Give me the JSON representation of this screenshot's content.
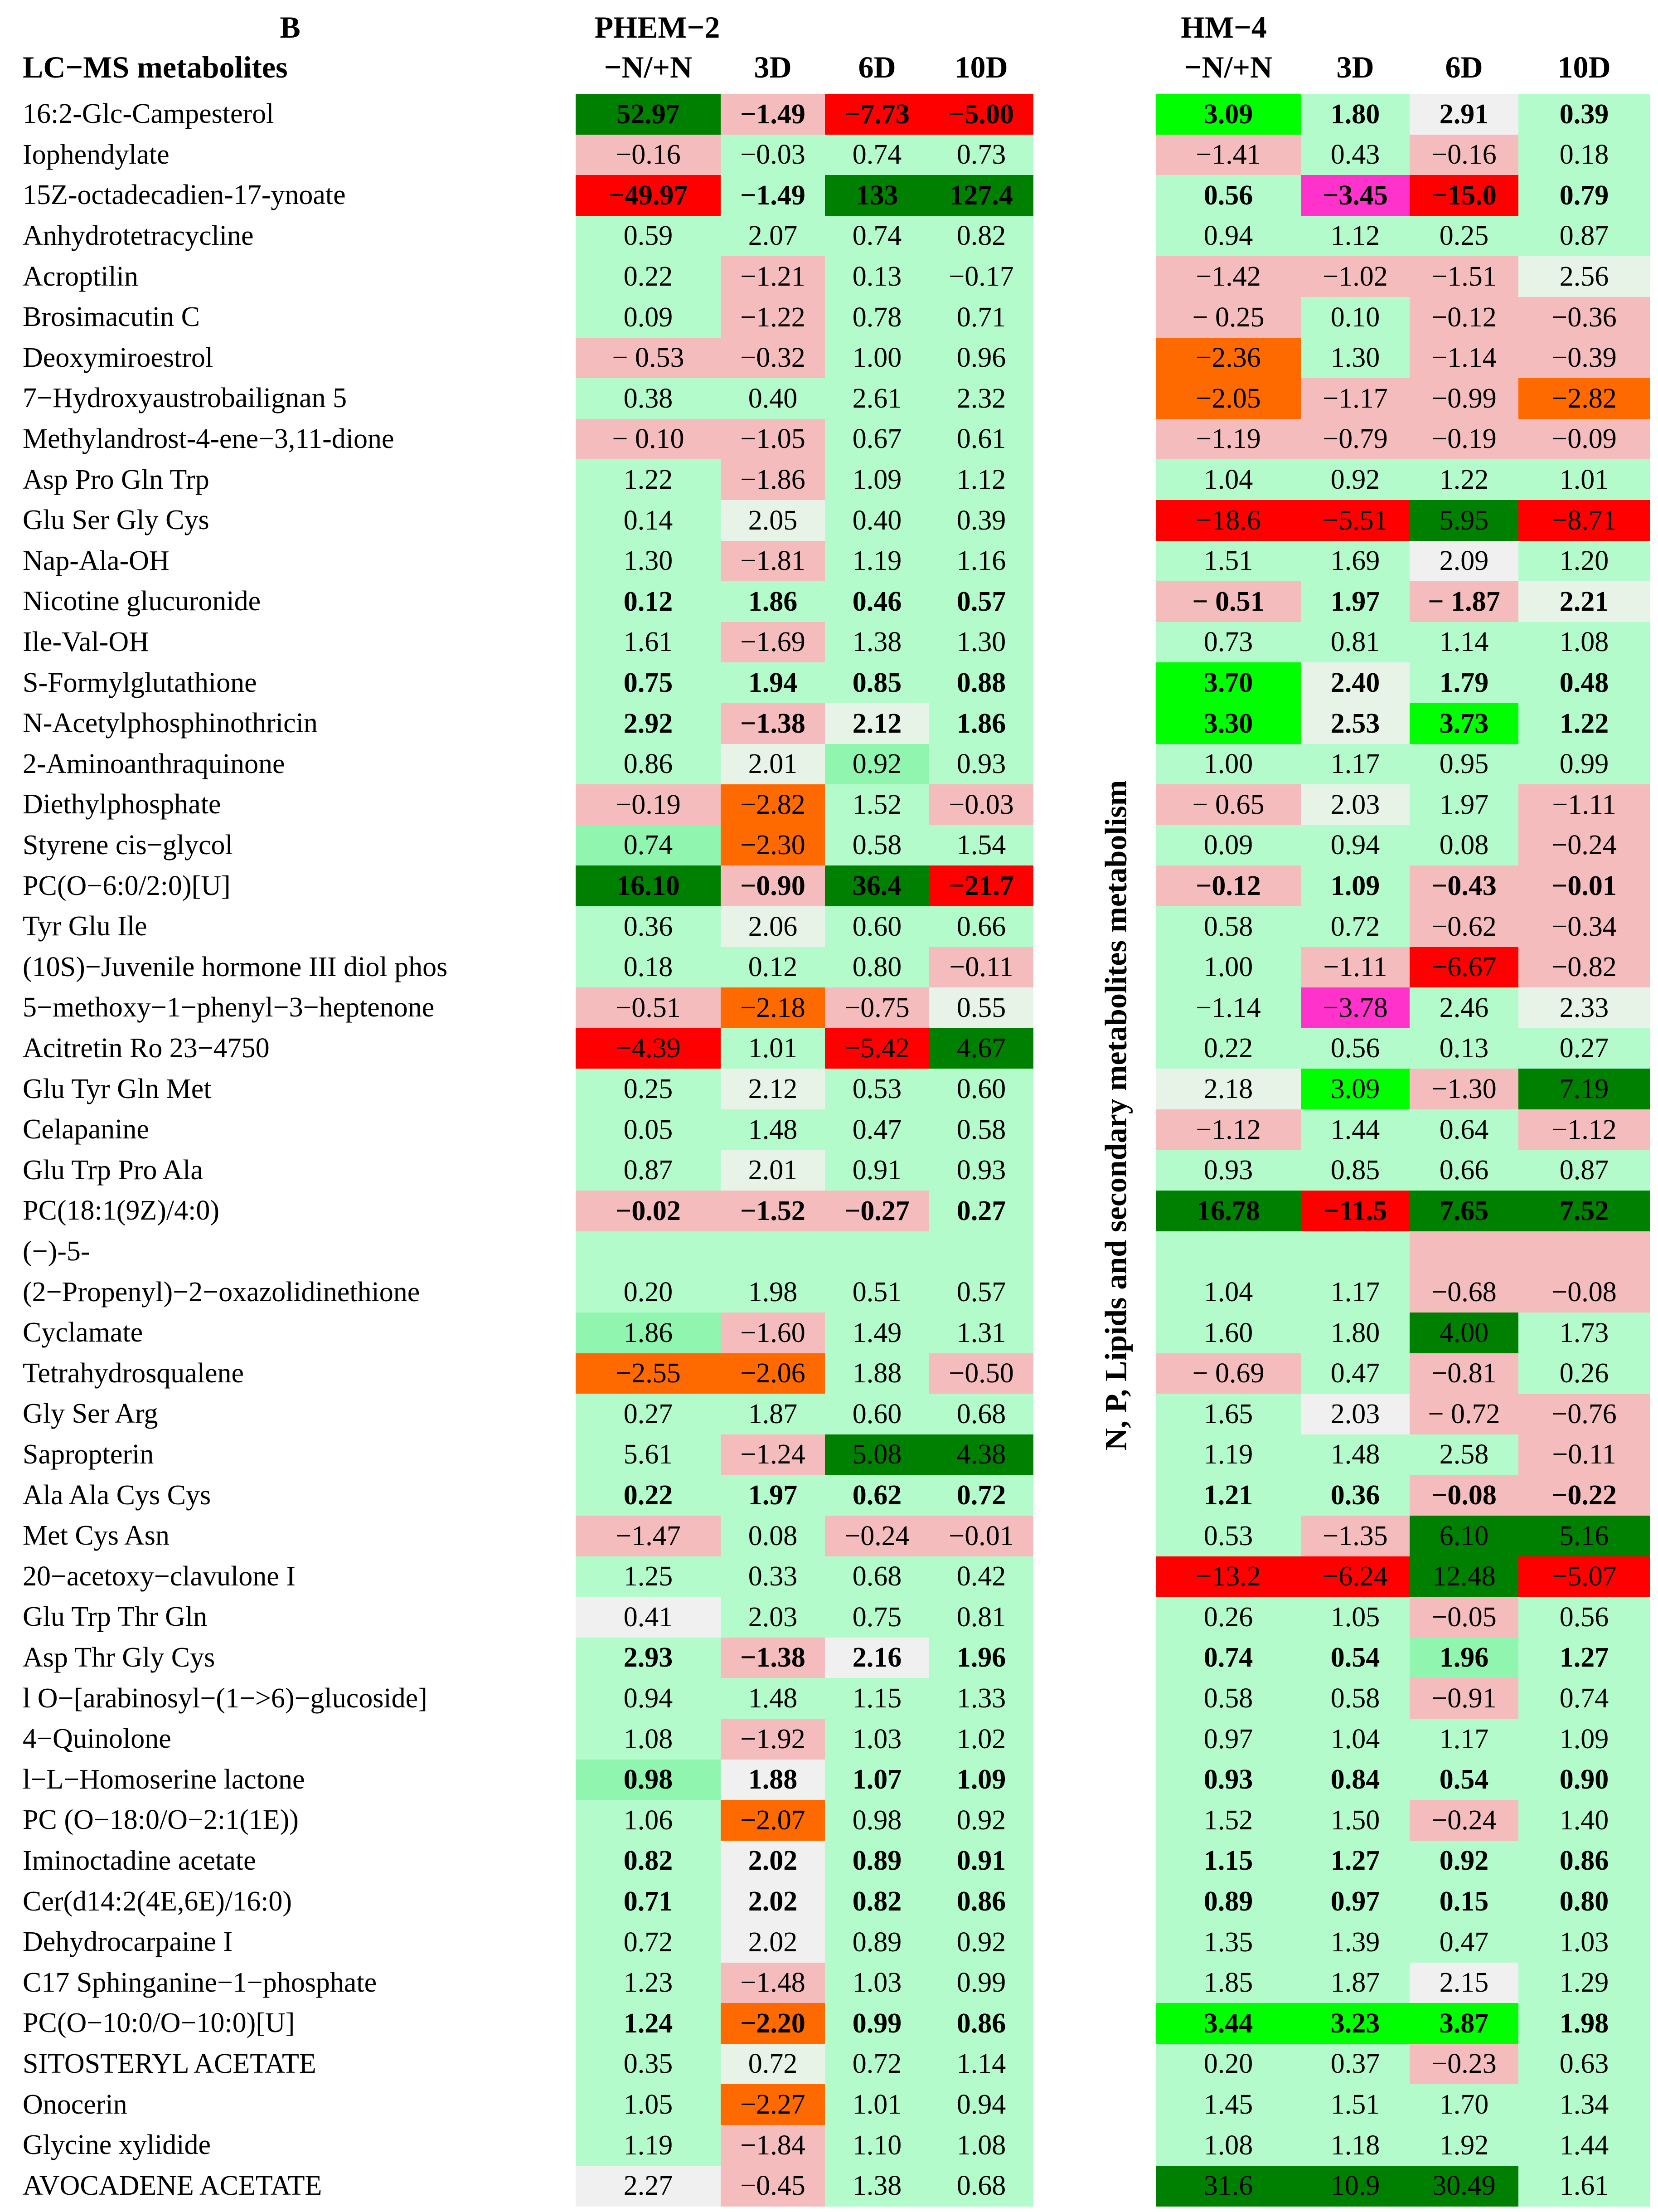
{
  "panel_letter": "B",
  "title": "LC−MS metabolites",
  "group1": {
    "name": "PHEM−2",
    "columns": [
      "−N/+N",
      "3D",
      "6D",
      "10D"
    ]
  },
  "group2": {
    "name": "HM−4",
    "columns": [
      "−N/+N",
      "3D",
      "6D",
      "10D"
    ]
  },
  "side_label": "N, P, Lipids and secondary metabolites metabolism",
  "colors": {
    "W": "#f0f0f0",
    "L": "#b4fbcc",
    "M": "#90f5ae",
    "G": "#00ff00",
    "D": "#008000",
    "P": "#f4bcbc",
    "O": "#ff6a00",
    "R": "#ff0000",
    "K": "#ff33cc",
    "E": "#e6f3e6"
  },
  "chart_data": {
    "type": "heatmap",
    "rows": [
      {
        "name": "16:2-Glc-Campesterol",
        "v": [
          "52.97",
          "−1.49",
          "−7.73",
          "−5.00",
          "3.09",
          "1.80",
          "2.91",
          "0.39"
        ],
        "c": "DPRRGLWL",
        "b": true
      },
      {
        "name": "Iophendylate",
        "v": [
          "−0.16",
          "−0.03",
          "0.74",
          "0.73",
          "−1.41",
          "0.43",
          "−0.16",
          "0.18"
        ],
        "c": "PLLLPLPL",
        "b": false
      },
      {
        "name": "15Z-octadecadien-17-ynoate",
        "v": [
          "−49.97",
          "−1.49",
          "133",
          "127.4",
          "0.56",
          "−3.45",
          "−15.0",
          "0.79"
        ],
        "c": "RLDDLKRL",
        "b": true
      },
      {
        "name": "Anhydrotetracycline",
        "v": [
          "0.59",
          "2.07",
          "0.74",
          "0.82",
          "0.94",
          "1.12",
          "0.25",
          "0.87"
        ],
        "c": "LLLLLLLL",
        "b": false
      },
      {
        "name": "Acroptilin",
        "v": [
          "0.22",
          "−1.21",
          "0.13",
          "−0.17",
          "−1.42",
          "−1.02",
          "−1.51",
          "2.56"
        ],
        "c": "LPLLPPPE",
        "b": false
      },
      {
        "name": "Brosimacutin C",
        "v": [
          "0.09",
          "−1.22",
          "0.78",
          "0.71",
          "− 0.25",
          "0.10",
          "−0.12",
          "−0.36"
        ],
        "c": "LPLLPLPP",
        "b": false
      },
      {
        "name": "Deoxymiroestrol",
        "v": [
          "− 0.53",
          "−0.32",
          "1.00",
          "0.96",
          "−2.36",
          "1.30",
          "−1.14",
          "−0.39"
        ],
        "c": "PPLLOLPP",
        "b": false
      },
      {
        "name": "7−Hydroxyaustrobailignan 5",
        "v": [
          "0.38",
          "0.40",
          "2.61",
          "2.32",
          "−2.05",
          "−1.17",
          "−0.99",
          "−2.82"
        ],
        "c": "LLLLOPPO",
        "b": false
      },
      {
        "name": "Methylandrost-4-ene−3,11-dione",
        "v": [
          "− 0.10",
          "−1.05",
          "0.67",
          "0.61",
          "−1.19",
          "−0.79",
          "−0.19",
          "−0.09"
        ],
        "c": "PPLLPPPP",
        "b": false
      },
      {
        "name": "Asp Pro Gln Trp",
        "v": [
          "1.22",
          "−1.86",
          "1.09",
          "1.12",
          "1.04",
          "0.92",
          "1.22",
          "1.01"
        ],
        "c": "LPLLLLLL",
        "b": false
      },
      {
        "name": "Glu Ser Gly Cys",
        "v": [
          "0.14",
          "2.05",
          "0.40",
          "0.39",
          "−18.6",
          "−5.51",
          "5.95",
          "−8.71"
        ],
        "c": "LELLRRDR",
        "b": false
      },
      {
        "name": "Nap-Ala-OH",
        "v": [
          "1.30",
          "−1.81",
          "1.19",
          "1.16",
          "1.51",
          "1.69",
          "2.09",
          "1.20"
        ],
        "c": "LPLLLLWL",
        "b": false
      },
      {
        "name": "Nicotine glucuronide",
        "v": [
          "0.12",
          "1.86",
          "0.46",
          "0.57",
          "− 0.51",
          "1.97",
          "− 1.87",
          "2.21"
        ],
        "c": "LLLLPLPE",
        "b": true
      },
      {
        "name": "Ile-Val-OH",
        "v": [
          "1.61",
          "−1.69",
          "1.38",
          "1.30",
          "0.73",
          "0.81",
          "1.14",
          "1.08"
        ],
        "c": "LPLLLLLL",
        "b": false
      },
      {
        "name": "S-Formylglutathione",
        "v": [
          "0.75",
          "1.94",
          "0.85",
          "0.88",
          "3.70",
          "2.40",
          "1.79",
          "0.48"
        ],
        "c": "LLLLGELL",
        "b": true
      },
      {
        "name": "N-Acetylphosphinothricin",
        "v": [
          "2.92",
          "−1.38",
          "2.12",
          "1.86",
          "3.30",
          "2.53",
          "3.73",
          "1.22"
        ],
        "c": "LPELGEGL",
        "b": true
      },
      {
        "name": "2-Aminoanthraquinone",
        "v": [
          "0.86",
          "2.01",
          "0.92",
          "0.93",
          "1.00",
          "1.17",
          "0.95",
          "0.99"
        ],
        "c": "LEMLLLLL",
        "b": false
      },
      {
        "name": "Diethylphosphate",
        "v": [
          "−0.19",
          "−2.82",
          "1.52",
          "−0.03",
          "− 0.65",
          "2.03",
          "1.97",
          "−1.11"
        ],
        "c": "POLPPELP",
        "b": false
      },
      {
        "name": "Styrene cis−glycol",
        "v": [
          "0.74",
          "−2.30",
          "0.58",
          "1.54",
          "0.09",
          "0.94",
          "0.08",
          "−0.24"
        ],
        "c": "MOLLLLLP",
        "b": false
      },
      {
        "name": "PC(O−6:0/2:0)[U]",
        "v": [
          "16.10",
          "−0.90",
          "36.4",
          "−21.7",
          "−0.12",
          "1.09",
          "−0.43",
          "−0.01"
        ],
        "c": "DPDRPLPP",
        "b": true
      },
      {
        "name": "Tyr Glu Ile",
        "v": [
          "0.36",
          "2.06",
          "0.60",
          "0.66",
          "0.58",
          "0.72",
          "−0.62",
          "−0.34"
        ],
        "c": "LELLLLPP",
        "b": false
      },
      {
        "name": "(10S)−Juvenile hormone III diol phos",
        "v": [
          "0.18",
          "0.12",
          "0.80",
          "−0.11",
          "1.00",
          "−1.11",
          "−6.67",
          "−0.82"
        ],
        "c": "LLLPLPRP",
        "b": false
      },
      {
        "name": "5−methoxy−1−phenyl−3−heptenone",
        "v": [
          "−0.51",
          "−2.18",
          "−0.75",
          "0.55",
          "−1.14",
          "−3.78",
          "2.46",
          "2.33"
        ],
        "c": "POPELKLE",
        "b": false
      },
      {
        "name": "Acitretin Ro 23−4750",
        "v": [
          "−4.39",
          "1.01",
          "−5.42",
          "4.67",
          "0.22",
          "0.56",
          "0.13",
          "0.27"
        ],
        "c": "RLRDLLLL",
        "b": false
      },
      {
        "name": "Glu Tyr Gln Met",
        "v": [
          "0.25",
          "2.12",
          "0.53",
          "0.60",
          "2.18",
          "3.09",
          "−1.30",
          "7.19"
        ],
        "c": "LELLEGPD",
        "b": false
      },
      {
        "name": "Celapanine",
        "v": [
          "0.05",
          "1.48",
          "0.47",
          "0.58",
          "−1.12",
          "1.44",
          "0.64",
          "−1.12"
        ],
        "c": "LLLLPLLP",
        "b": false
      },
      {
        "name": "Glu Trp Pro Ala",
        "v": [
          "0.87",
          "2.01",
          "0.91",
          "0.93",
          "0.93",
          "0.85",
          "0.66",
          "0.87"
        ],
        "c": "LELLLLLL",
        "b": false
      },
      {
        "name": "PC(18:1(9Z)/4:0)",
        "v": [
          "−0.02",
          "−1.52",
          "−0.27",
          "0.27",
          "16.78",
          "−11.5",
          "7.65",
          "7.52"
        ],
        "c": "PPPLDRDD",
        "b": true
      },
      {
        "name": "(−)-5-",
        "v": [
          "",
          "",
          "",
          "",
          "",
          "",
          "",
          ""
        ],
        "c": "LLLLLLPP",
        "b": false
      },
      {
        "name": "(2−Propenyl)−2−oxazolidinethione",
        "v": [
          "0.20",
          "1.98",
          "0.51",
          "0.57",
          "1.04",
          "1.17",
          "−0.68",
          "−0.08"
        ],
        "c": "LLLLLLPP",
        "b": false
      },
      {
        "name": "Cyclamate",
        "v": [
          "1.86",
          "−1.60",
          "1.49",
          "1.31",
          "1.60",
          "1.80",
          "4.00",
          "1.73"
        ],
        "c": "MPLLLLDL",
        "b": false
      },
      {
        "name": "Tetrahydrosqualene",
        "v": [
          "−2.55",
          "−2.06",
          "1.88",
          "−0.50",
          "− 0.69",
          "0.47",
          "−0.81",
          "0.26"
        ],
        "c": "OOLPPLPL",
        "b": false
      },
      {
        "name": "Gly Ser Arg",
        "v": [
          "0.27",
          "1.87",
          "0.60",
          "0.68",
          "1.65",
          "2.03",
          "− 0.72",
          "−0.76"
        ],
        "c": "LLLLLWPP",
        "b": false
      },
      {
        "name": "Sapropterin",
        "v": [
          "5.61",
          "−1.24",
          "5.08",
          "4.38",
          "1.19",
          "1.48",
          "2.58",
          "−0.11"
        ],
        "c": "LPDDLLLP",
        "b": false
      },
      {
        "name": "Ala Ala Cys Cys",
        "v": [
          "0.22",
          "1.97",
          "0.62",
          "0.72",
          "1.21",
          "0.36",
          "−0.08",
          "−0.22"
        ],
        "c": "LLLLLLPP",
        "b": true
      },
      {
        "name": "Met Cys Asn",
        "v": [
          "−1.47",
          "0.08",
          "−0.24",
          "−0.01",
          "0.53",
          "−1.35",
          "6.10",
          "5.16"
        ],
        "c": "PLPPLPDD",
        "b": false
      },
      {
        "name": "20−acetoxy−clavulone I",
        "v": [
          "1.25",
          "0.33",
          "0.68",
          "0.42",
          "−13.2",
          "−6.24",
          "12.48",
          "−5.07"
        ],
        "c": "LLLLRRDR",
        "b": false
      },
      {
        "name": "Glu Trp Thr Gln",
        "v": [
          "0.41",
          "2.03",
          "0.75",
          "0.81",
          "0.26",
          "1.05",
          "−0.05",
          "0.56"
        ],
        "c": "WLLLLLPL",
        "b": false
      },
      {
        "name": "Asp Thr Gly Cys",
        "v": [
          "2.93",
          "−1.38",
          "2.16",
          "1.96",
          "0.74",
          "0.54",
          "1.96",
          "1.27"
        ],
        "c": "LPWLLLML",
        "b": true
      },
      {
        "name": "l O−[arabinosyl−(1−>6)−glucoside]",
        "v": [
          "0.94",
          "1.48",
          "1.15",
          "1.33",
          "0.58",
          "0.58",
          "−0.91",
          "0.74"
        ],
        "c": "LLLLLLPL",
        "b": false
      },
      {
        "name": "4−Quinolone",
        "v": [
          "1.08",
          "−1.92",
          "1.03",
          "1.02",
          "0.97",
          "1.04",
          "1.17",
          "1.09"
        ],
        "c": "LPLLLLLL",
        "b": false
      },
      {
        "name": "l−L−Homoserine lactone",
        "v": [
          "0.98",
          "1.88",
          "1.07",
          "1.09",
          "0.93",
          "0.84",
          "0.54",
          "0.90"
        ],
        "c": "MWLLLLLL",
        "b": true
      },
      {
        "name": "PC (O−18:0/O−2:1(1E))",
        "v": [
          "1.06",
          "−2.07",
          "0.98",
          "0.92",
          "1.52",
          "1.50",
          "−0.24",
          "1.40"
        ],
        "c": "LOLLLLPL",
        "b": false
      },
      {
        "name": "Iminoctadine acetate",
        "v": [
          "0.82",
          "2.02",
          "0.89",
          "0.91",
          "1.15",
          "1.27",
          "0.92",
          "0.86"
        ],
        "c": "LWLLLLLL",
        "b": true
      },
      {
        "name": "Cer(d14:2(4E,6E)/16:0)",
        "v": [
          "0.71",
          "2.02",
          "0.82",
          "0.86",
          "0.89",
          "0.97",
          "0.15",
          "0.80"
        ],
        "c": "LWLLLLLL",
        "b": true
      },
      {
        "name": "Dehydrocarpaine I",
        "v": [
          "0.72",
          "2.02",
          "0.89",
          "0.92",
          "1.35",
          "1.39",
          "0.47",
          "1.03"
        ],
        "c": "LWLLLLLL",
        "b": false
      },
      {
        "name": "C17 Sphinganine−1−phosphate",
        "v": [
          "1.23",
          "−1.48",
          "1.03",
          "0.99",
          "1.85",
          "1.87",
          "2.15",
          "1.29"
        ],
        "c": "LPLLLLWL",
        "b": false
      },
      {
        "name": "PC(O−10:0/O−10:0)[U]",
        "v": [
          "1.24",
          "−2.20",
          "0.99",
          "0.86",
          "3.44",
          "3.23",
          "3.87",
          "1.98"
        ],
        "c": "LOLLGGGL",
        "b": true
      },
      {
        "name": "SITOSTERYL ACETATE",
        "v": [
          "0.35",
          "0.72",
          "0.72",
          "1.14",
          "0.20",
          "0.37",
          "−0.23",
          "0.63"
        ],
        "c": "LELLLLPL",
        "b": false
      },
      {
        "name": "Onocerin",
        "v": [
          "1.05",
          "−2.27",
          "1.01",
          "0.94",
          "1.45",
          "1.51",
          "1.70",
          "1.34"
        ],
        "c": "LOLLLLLL",
        "b": false
      },
      {
        "name": "Glycine xylidide",
        "v": [
          "1.19",
          "−1.84",
          "1.10",
          "1.08",
          "1.08",
          "1.18",
          "1.92",
          "1.44"
        ],
        "c": "LPLLLLLL",
        "b": false
      },
      {
        "name": "AVOCADENE ACETATE",
        "v": [
          "2.27",
          "−0.45",
          "1.38",
          "0.68",
          "31.6",
          "10.9",
          "30.49",
          "1.61"
        ],
        "c": "WPLLDDDL",
        "b": false
      }
    ]
  }
}
